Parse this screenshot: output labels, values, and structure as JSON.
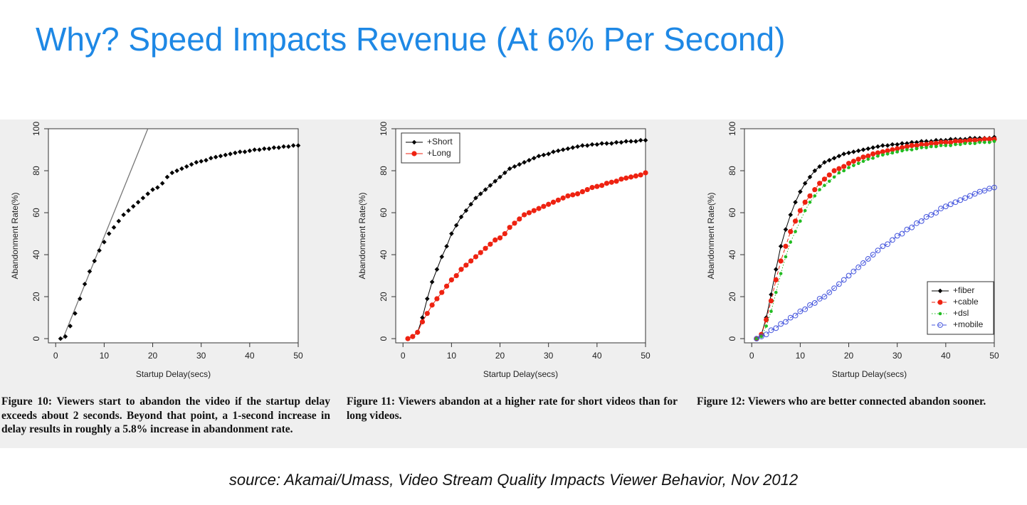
{
  "title": "Why? Speed Impacts Revenue (At 6% Per Second)",
  "source": "source: Akamai/Umass, Video Stream Quality Impacts Viewer Behavior, Nov 2012",
  "chart_data": [
    {
      "type": "line",
      "caption": "Figure 10: Viewers start to abandon the video if the startup delay exceeds about 2 seconds. Beyond that point, a 1-second increase in delay results in roughly a 5.8% increase in abandonment rate.",
      "x_label": "Startup Delay(secs)",
      "y_label": "Abandonment Rate(%)",
      "xlim": [
        -1.5,
        50
      ],
      "ylim": [
        -2,
        100
      ],
      "xticks": [
        0,
        10,
        20,
        30,
        40,
        50
      ],
      "yticks": [
        0,
        20,
        40,
        60,
        80,
        100
      ],
      "fit_line": {
        "x": [
          1.5,
          19
        ],
        "y": [
          0,
          100
        ],
        "color": "#777777"
      },
      "x": [
        1,
        2,
        3,
        4,
        5,
        6,
        7,
        8,
        9,
        10,
        11,
        12,
        13,
        14,
        15,
        16,
        17,
        18,
        19,
        20,
        21,
        22,
        23,
        24,
        25,
        26,
        27,
        28,
        29,
        30,
        31,
        32,
        33,
        34,
        35,
        36,
        37,
        38,
        39,
        40,
        41,
        42,
        43,
        44,
        45,
        46,
        47,
        48,
        49,
        50
      ],
      "series": [
        {
          "color": "#000000",
          "marker": "diamond",
          "line_style": "none",
          "values": [
            0,
            1,
            6,
            12,
            19,
            26,
            32,
            37,
            42,
            46,
            50,
            53,
            56,
            59,
            61,
            63,
            65,
            67,
            69,
            71,
            72,
            74,
            77,
            79,
            80,
            81,
            82,
            83,
            84,
            84.5,
            85,
            86,
            86.5,
            87,
            87.5,
            88,
            88.5,
            89,
            89,
            89.5,
            90,
            90,
            90.5,
            90.5,
            91,
            91,
            91.5,
            91.5,
            92,
            92
          ]
        }
      ]
    },
    {
      "type": "line",
      "caption": "Figure 11: Viewers abandon at a higher rate for short videos than for long videos.",
      "x_label": "Startup Delay(secs)",
      "y_label": "Abandonment Rate(%)",
      "xlim": [
        -1.5,
        50
      ],
      "ylim": [
        -2,
        100
      ],
      "xticks": [
        0,
        10,
        20,
        30,
        40,
        50
      ],
      "yticks": [
        0,
        20,
        40,
        60,
        80,
        100
      ],
      "legend": "top-left",
      "x": [
        1,
        2,
        3,
        4,
        5,
        6,
        7,
        8,
        9,
        10,
        11,
        12,
        13,
        14,
        15,
        16,
        17,
        18,
        19,
        20,
        21,
        22,
        23,
        24,
        25,
        26,
        27,
        28,
        29,
        30,
        31,
        32,
        33,
        34,
        35,
        36,
        37,
        38,
        39,
        40,
        41,
        42,
        43,
        44,
        45,
        46,
        47,
        48,
        49,
        50
      ],
      "series": [
        {
          "name": "+Short",
          "color": "#000000",
          "marker": "diamond",
          "line_style": "solid",
          "values": [
            0,
            1,
            3,
            10,
            19,
            27,
            33,
            39,
            44,
            50,
            54,
            58,
            61,
            64,
            67,
            69,
            71,
            73,
            75,
            77,
            79,
            81,
            82,
            83,
            84,
            85,
            86,
            87,
            87.5,
            88,
            89,
            89.5,
            90,
            90.5,
            91,
            91.5,
            92,
            92,
            92.5,
            92.5,
            93,
            93,
            93,
            93.5,
            93.5,
            94,
            94,
            94,
            94.5,
            94.5
          ]
        },
        {
          "name": "+Long",
          "color": "#ee2211",
          "marker": "circle",
          "line_style": "solid",
          "values": [
            0,
            1,
            3,
            8,
            12,
            16,
            19,
            22,
            25,
            28,
            30,
            33,
            35,
            37,
            39,
            41,
            43,
            45,
            47,
            48,
            50,
            53,
            55,
            57,
            59,
            60,
            61,
            62,
            63,
            64,
            65,
            66,
            67,
            68,
            68.5,
            69,
            70,
            71,
            72,
            72.5,
            73,
            74,
            74.5,
            75,
            76,
            76.5,
            77,
            77.5,
            78,
            79
          ]
        }
      ]
    },
    {
      "type": "line",
      "caption": "Figure 12: Viewers who are better connected abandon sooner.",
      "x_label": "Startup Delay(secs)",
      "y_label": "Abandonment Rate(%)",
      "xlim": [
        -1.5,
        50
      ],
      "ylim": [
        -2,
        100
      ],
      "xticks": [
        0,
        10,
        20,
        30,
        40,
        50
      ],
      "yticks": [
        0,
        20,
        40,
        60,
        80,
        100
      ],
      "legend": "bottom-right",
      "x": [
        1,
        2,
        3,
        4,
        5,
        6,
        7,
        8,
        9,
        10,
        11,
        12,
        13,
        14,
        15,
        16,
        17,
        18,
        19,
        20,
        21,
        22,
        23,
        24,
        25,
        26,
        27,
        28,
        29,
        30,
        31,
        32,
        33,
        34,
        35,
        36,
        37,
        38,
        39,
        40,
        41,
        42,
        43,
        44,
        45,
        46,
        47,
        48,
        49,
        50
      ],
      "series": [
        {
          "name": "+fiber",
          "color": "#000000",
          "marker": "diamond",
          "line_style": "solid",
          "values": [
            0,
            2,
            10,
            21,
            33,
            44,
            52,
            59,
            65,
            70,
            74,
            77,
            80,
            82,
            84,
            85,
            86,
            87,
            88,
            88.5,
            89,
            89.5,
            90,
            90.5,
            91,
            91.5,
            92,
            92,
            92.5,
            92.5,
            93,
            93,
            93.5,
            93.5,
            94,
            94,
            94,
            94.5,
            94.5,
            94.5,
            95,
            95,
            95,
            95,
            95.5,
            95.5,
            95.5,
            95.5,
            95.5,
            96
          ]
        },
        {
          "name": "+cable",
          "color": "#ee2211",
          "marker": "circle",
          "line_style": "dashed",
          "values": [
            0,
            2,
            9,
            18,
            28,
            37,
            44,
            51,
            56,
            61,
            65,
            68,
            71,
            74,
            76,
            78,
            80,
            81,
            82,
            83.5,
            84.5,
            85.5,
            86.5,
            87,
            88,
            88.5,
            89,
            89.5,
            90,
            90.5,
            91,
            91.5,
            92,
            92,
            92.5,
            92.5,
            93,
            93,
            93.5,
            93.5,
            93.5,
            94,
            94,
            94,
            94.5,
            94.5,
            94.5,
            95,
            95,
            95
          ]
        },
        {
          "name": "+dsl",
          "color": "#22bb22",
          "marker": "dot",
          "line_style": "dotted",
          "values": [
            0,
            1,
            6,
            13,
            22,
            31,
            39,
            46,
            51,
            56,
            61,
            65,
            68,
            71,
            73,
            75,
            77,
            79,
            80,
            81.5,
            82.5,
            83.5,
            84.5,
            85.5,
            86,
            87,
            87.5,
            88,
            88.5,
            89,
            89.5,
            90,
            90,
            90.5,
            91,
            91,
            91.5,
            91.5,
            92,
            92,
            92,
            92.5,
            92.5,
            93,
            93,
            93,
            93.5,
            93.5,
            93.5,
            94
          ]
        },
        {
          "name": "+mobile",
          "color": "#4455dd",
          "marker": "open-circle",
          "line_style": "dashed",
          "values": [
            0,
            1,
            2,
            4,
            5,
            7,
            8,
            10,
            11,
            13,
            14,
            16,
            17,
            19,
            20,
            22,
            24,
            26,
            28,
            30,
            32,
            34,
            36,
            38,
            40,
            42,
            44,
            45,
            47,
            49,
            50,
            52,
            53,
            55,
            56,
            58,
            59,
            60,
            62,
            63,
            64,
            65,
            66,
            67,
            68,
            69,
            70,
            70.5,
            71.5,
            72
          ]
        }
      ]
    }
  ]
}
